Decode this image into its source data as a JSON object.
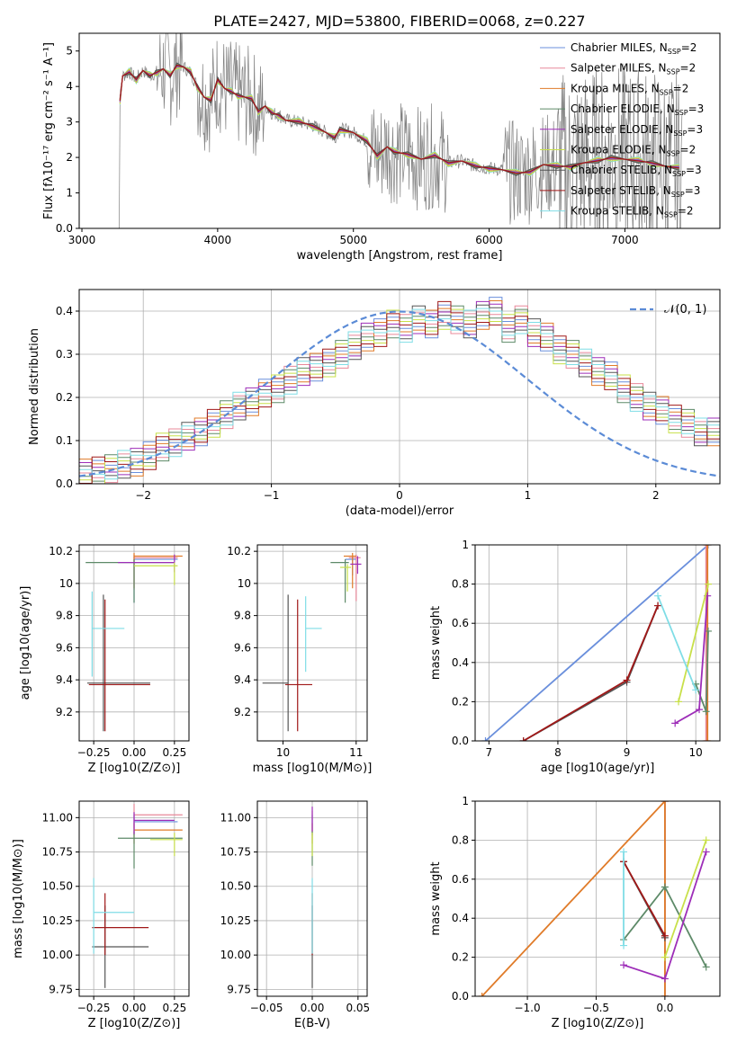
{
  "figure": {
    "title": "PLATE=2427, MJD=53800, FIBERID=0068, z=0.227"
  },
  "colors": {
    "models": [
      "#6a8fdc",
      "#e8889a",
      "#e07b29",
      "#5d8a68",
      "#9d2db8",
      "#c8e04a",
      "#555555",
      "#a01818",
      "#7fdde6"
    ],
    "data": "#808080",
    "grid": "#b0b0b0"
  },
  "chart_data": [
    {
      "id": "spectrum",
      "type": "line",
      "xlabel": "wavelength [Angstrom, rest frame]",
      "ylabel": "Flux [fλ10⁻¹⁷ erg cm⁻² s⁻¹ A⁻¹]",
      "xlim": [
        2980,
        7700
      ],
      "ylim": [
        0,
        5.5
      ],
      "xticks": [
        3000,
        4000,
        5000,
        6000,
        7000
      ],
      "yticks": [
        0,
        1,
        2,
        3,
        4,
        5
      ],
      "grid": false,
      "legend_position": "top-right",
      "legend": [
        {
          "label": "Chabrier MILES, N",
          "sub": "SSP",
          "suffix": "=2"
        },
        {
          "label": "Salpeter MILES, N",
          "sub": "SSP",
          "suffix": "=2"
        },
        {
          "label": "Kroupa MILES, N",
          "sub": "SSP",
          "suffix": "=2"
        },
        {
          "label": "Chabrier ELODIE, N",
          "sub": "SSP",
          "suffix": "=3"
        },
        {
          "label": "Salpeter ELODIE, N",
          "sub": "SSP",
          "suffix": "=3"
        },
        {
          "label": "Kroupa ELODIE, N",
          "sub": "SSP",
          "suffix": "=2"
        },
        {
          "label": "Chabrier STELIB, N",
          "sub": "SSP",
          "suffix": "=3"
        },
        {
          "label": "Salpeter STELIB, N",
          "sub": "SSP",
          "suffix": "=3"
        },
        {
          "label": "Kroupa STELIB, N",
          "sub": "SSP",
          "suffix": "=2"
        }
      ],
      "data_range": [
        3250,
        7420
      ],
      "model_wavelength": [
        3280,
        3300,
        3350,
        3400,
        3450,
        3500,
        3550,
        3600,
        3650,
        3700,
        3750,
        3800,
        3850,
        3900,
        3950,
        4000,
        4050,
        4100,
        4150,
        4200,
        4250,
        4300,
        4350,
        4400,
        4450,
        4500,
        4600,
        4700,
        4800,
        4860,
        4900,
        5000,
        5100,
        5175,
        5250,
        5300,
        5400,
        5500,
        5600,
        5700,
        5800,
        5900,
        6000,
        6100,
        6200,
        6300,
        6400,
        6500,
        6600,
        6700,
        6800,
        6900,
        7000,
        7100,
        7200,
        7300,
        7400
      ],
      "model_flux": [
        3.6,
        4.3,
        4.4,
        4.2,
        4.45,
        4.3,
        4.4,
        4.5,
        4.3,
        4.6,
        4.55,
        4.4,
        4.0,
        3.7,
        3.6,
        4.2,
        3.95,
        3.85,
        3.75,
        3.7,
        3.65,
        3.3,
        3.45,
        3.25,
        3.2,
        3.05,
        3.0,
        2.9,
        2.7,
        2.55,
        2.8,
        2.7,
        2.45,
        2.05,
        2.3,
        2.15,
        2.1,
        1.95,
        2.05,
        1.85,
        1.9,
        1.75,
        1.7,
        1.65,
        1.55,
        1.6,
        1.8,
        1.75,
        1.75,
        1.85,
        1.9,
        2.0,
        1.95,
        1.9,
        1.85,
        1.75,
        1.7
      ]
    },
    {
      "id": "residuals",
      "type": "histogram",
      "xlabel": "(data-model)/error",
      "ylabel": "Normed distribution",
      "xlim": [
        -2.5,
        2.5
      ],
      "ylim": [
        0,
        0.45
      ],
      "xticks": [
        -2,
        -1,
        0,
        1,
        2
      ],
      "yticks": [
        0.0,
        0.1,
        0.2,
        0.3,
        0.4
      ],
      "grid": true,
      "legend": [
        {
          "label": "𝒩(0, 1)",
          "style": "dashed"
        }
      ],
      "legend_position": "top-right",
      "bin_width": 0.1,
      "bin_start": -2.5,
      "base_hist": [
        0.025,
        0.03,
        0.035,
        0.045,
        0.05,
        0.065,
        0.085,
        0.095,
        0.11,
        0.12,
        0.14,
        0.16,
        0.18,
        0.19,
        0.21,
        0.22,
        0.24,
        0.26,
        0.27,
        0.28,
        0.3,
        0.32,
        0.34,
        0.35,
        0.37,
        0.36,
        0.38,
        0.37,
        0.39,
        0.38,
        0.37,
        0.39,
        0.4,
        0.36,
        0.38,
        0.35,
        0.34,
        0.31,
        0.3,
        0.28,
        0.26,
        0.25,
        0.22,
        0.2,
        0.18,
        0.17,
        0.15,
        0.14,
        0.12,
        0.12,
        0.11,
        0.1,
        0.09,
        0.085,
        0.08,
        0.07,
        0.06,
        0.055,
        0.05,
        0.045
      ]
    },
    {
      "id": "age-vs-Z",
      "type": "scatter",
      "xlabel": "Z [log10(Z/Z⊙)]",
      "ylabel": "age  [log10(age/yr)]",
      "xlim": [
        -0.34,
        0.34
      ],
      "ylim": [
        9.02,
        10.24
      ],
      "xticks": [
        -0.25,
        0.0,
        0.25
      ],
      "xticklabels": [
        "−0.25",
        "0.00",
        "0.25"
      ],
      "yticks": [
        9.2,
        9.4,
        9.6,
        9.8,
        10.0,
        10.2
      ],
      "grid": true,
      "points": [
        {
          "model": 0,
          "x": 0.0,
          "y": 10.15,
          "xerr": [
            0.0,
            0.27
          ],
          "yerr": [
            0.27,
            0.02
          ]
        },
        {
          "model": 1,
          "x": 0.0,
          "y": 10.16,
          "xerr": [
            0.0,
            0.27
          ],
          "yerr": [
            0.2,
            0.02
          ]
        },
        {
          "model": 2,
          "x": 0.0,
          "y": 10.17,
          "xerr": [
            0.0,
            0.3
          ],
          "yerr": [
            0.2,
            0.02
          ]
        },
        {
          "model": 3,
          "x": 0.0,
          "y": 10.13,
          "xerr": [
            0.3,
            0.25
          ],
          "yerr": [
            0.25,
            0.02
          ]
        },
        {
          "model": 4,
          "x": 0.25,
          "y": 10.13,
          "xerr": [
            0.35,
            0.0
          ],
          "yerr": [
            0.06,
            0.05
          ]
        },
        {
          "model": 5,
          "x": 0.25,
          "y": 10.11,
          "xerr": [
            0.25,
            0.02
          ],
          "yerr": [
            0.12,
            0.02
          ]
        },
        {
          "model": 6,
          "x": -0.19,
          "y": 9.38,
          "xerr": [
            0.1,
            0.29
          ],
          "yerr": [
            0.3,
            0.55
          ]
        },
        {
          "model": 7,
          "x": -0.18,
          "y": 9.37,
          "xerr": [
            0.1,
            0.28
          ],
          "yerr": [
            0.29,
            0.53
          ]
        },
        {
          "model": 8,
          "x": -0.26,
          "y": 9.72,
          "xerr": [
            0.0,
            0.2
          ],
          "yerr": [
            0.3,
            0.23
          ]
        }
      ]
    },
    {
      "id": "age-vs-mass",
      "type": "scatter",
      "xlabel": "mass [log10(M/M⊙)]",
      "ylabel": "",
      "xlim": [
        9.65,
        11.15
      ],
      "ylim": [
        9.02,
        10.24
      ],
      "xticks": [
        10,
        11
      ],
      "yticks": [
        9.2,
        9.4,
        9.6,
        9.8,
        10.0,
        10.2
      ],
      "grid": true,
      "points": [
        {
          "model": 0,
          "x": 10.95,
          "y": 10.15,
          "xerr": [
            0.1,
            0.05
          ],
          "yerr": [
            0.1,
            0.02
          ]
        },
        {
          "model": 1,
          "x": 11.0,
          "y": 10.16,
          "xerr": [
            0.1,
            0.06
          ],
          "yerr": [
            0.27,
            0.02
          ]
        },
        {
          "model": 2,
          "x": 10.95,
          "y": 10.17,
          "xerr": [
            0.12,
            0.05
          ],
          "yerr": [
            0.2,
            0.02
          ]
        },
        {
          "model": 3,
          "x": 10.85,
          "y": 10.13,
          "xerr": [
            0.2,
            0.05
          ],
          "yerr": [
            0.25,
            0.02
          ]
        },
        {
          "model": 4,
          "x": 11.02,
          "y": 10.12,
          "xerr": [
            0.1,
            0.05
          ],
          "yerr": [
            0.06,
            0.05
          ]
        },
        {
          "model": 5,
          "x": 10.88,
          "y": 10.1,
          "xerr": [
            0.1,
            0.05
          ],
          "yerr": [
            0.15,
            0.02
          ]
        },
        {
          "model": 6,
          "x": 10.07,
          "y": 9.38,
          "xerr": [
            0.35,
            0.0
          ],
          "yerr": [
            0.3,
            0.55
          ]
        },
        {
          "model": 7,
          "x": 10.2,
          "y": 9.37,
          "xerr": [
            0.17,
            0.2
          ],
          "yerr": [
            0.29,
            0.53
          ]
        },
        {
          "model": 8,
          "x": 10.31,
          "y": 9.72,
          "xerr": [
            0.0,
            0.22
          ],
          "yerr": [
            0.27,
            0.2
          ]
        }
      ]
    },
    {
      "id": "weight-vs-age",
      "type": "line",
      "xlabel": "age  [log10(age/yr)]",
      "ylabel": "mass weight",
      "xlim": [
        6.8,
        10.35
      ],
      "ylim": [
        0,
        1.0
      ],
      "xticks": [
        7,
        8,
        9,
        10
      ],
      "yticks": [
        0.0,
        0.2,
        0.4,
        0.6,
        0.8,
        1.0
      ],
      "grid": true,
      "series": [
        {
          "model": 0,
          "x": [
            6.95,
            10.18
          ],
          "y": [
            0.0,
            1.0
          ]
        },
        {
          "model": 1,
          "x": [
            10.15,
            10.15
          ],
          "y": [
            0.0,
            1.0
          ]
        },
        {
          "model": 2,
          "x": [
            10.17,
            10.17
          ],
          "y": [
            0.0,
            1.0
          ]
        },
        {
          "model": 3,
          "x": [
            10.0,
            10.15,
            10.18
          ],
          "y": [
            0.29,
            0.15,
            0.56
          ]
        },
        {
          "model": 4,
          "x": [
            9.7,
            10.05,
            10.17
          ],
          "y": [
            0.09,
            0.16,
            0.74
          ]
        },
        {
          "model": 5,
          "x": [
            9.75,
            10.18
          ],
          "y": [
            0.2,
            0.8
          ]
        },
        {
          "model": 6,
          "x": [
            7.5,
            9.0,
            9.45
          ],
          "y": [
            0.0,
            0.3,
            0.69
          ]
        },
        {
          "model": 7,
          "x": [
            7.5,
            9.0,
            9.45
          ],
          "y": [
            0.0,
            0.31,
            0.69
          ]
        },
        {
          "model": 8,
          "x": [
            9.45,
            10.0
          ],
          "y": [
            0.74,
            0.26
          ]
        }
      ]
    },
    {
      "id": "mass-vs-Z",
      "type": "scatter",
      "xlabel": "Z [log10(Z/Z⊙)]",
      "ylabel": "mass [log10(M/M⊙)]",
      "xlim": [
        -0.34,
        0.34
      ],
      "ylim": [
        9.7,
        11.12
      ],
      "xticks": [
        -0.25,
        0.0,
        0.25
      ],
      "xticklabels": [
        "−0.25",
        "0.00",
        "0.25"
      ],
      "yticks": [
        9.75,
        10.0,
        10.25,
        10.5,
        10.75,
        11.0
      ],
      "yticklabels": [
        "9.75",
        "10.00",
        "10.25",
        "10.50",
        "10.75",
        "11.00"
      ],
      "grid": true,
      "points": [
        {
          "model": 0,
          "x": 0.0,
          "y": 10.97,
          "xerr": [
            0.0,
            0.27
          ],
          "yerr": [
            0.1,
            0.05
          ]
        },
        {
          "model": 1,
          "x": 0.0,
          "y": 11.02,
          "xerr": [
            0.0,
            0.3
          ],
          "yerr": [
            0.1,
            0.08
          ]
        },
        {
          "model": 2,
          "x": 0.0,
          "y": 10.91,
          "xerr": [
            0.0,
            0.3
          ],
          "yerr": [
            0.1,
            0.05
          ]
        },
        {
          "model": 3,
          "x": 0.0,
          "y": 10.85,
          "xerr": [
            0.1,
            0.3
          ],
          "yerr": [
            0.22,
            0.05
          ]
        },
        {
          "model": 4,
          "x": 0.0,
          "y": 10.98,
          "xerr": [
            0.0,
            0.25
          ],
          "yerr": [
            0.1,
            0.06
          ]
        },
        {
          "model": 5,
          "x": 0.25,
          "y": 10.84,
          "xerr": [
            0.15,
            0.05
          ],
          "yerr": [
            0.12,
            0.05
          ]
        },
        {
          "model": 6,
          "x": -0.18,
          "y": 10.06,
          "xerr": [
            0.08,
            0.27
          ],
          "yerr": [
            0.3,
            0.3
          ]
        },
        {
          "model": 7,
          "x": -0.18,
          "y": 10.2,
          "xerr": [
            0.08,
            0.27
          ],
          "yerr": [
            0.2,
            0.25
          ]
        },
        {
          "model": 8,
          "x": -0.25,
          "y": 10.31,
          "xerr": [
            0.0,
            0.25
          ],
          "yerr": [
            0.3,
            0.25
          ]
        }
      ]
    },
    {
      "id": "mass-vs-EBV",
      "type": "scatter",
      "xlabel": "E(B-V)",
      "ylabel": "",
      "xlim": [
        -0.06,
        0.06
      ],
      "ylim": [
        9.7,
        11.12
      ],
      "xticks": [
        -0.05,
        0.0,
        0.05
      ],
      "xticklabels": [
        "−0.05",
        "0.00",
        "0.05"
      ],
      "yticks": [
        9.75,
        10.0,
        10.25,
        10.5,
        10.75,
        11.0
      ],
      "yticklabels": [
        "9.75",
        "10.00",
        "10.25",
        "10.50",
        "10.75",
        "11.00"
      ],
      "grid": true,
      "points": [
        {
          "model": 0,
          "x": 0.0,
          "y": 10.97,
          "xerr": [
            0,
            0
          ],
          "yerr": [
            0.1,
            0.05
          ]
        },
        {
          "model": 1,
          "x": 0.0,
          "y": 11.0,
          "xerr": [
            0,
            0
          ],
          "yerr": [
            0.1,
            0.05
          ]
        },
        {
          "model": 2,
          "x": 0.0,
          "y": 10.91,
          "xerr": [
            0,
            0
          ],
          "yerr": [
            0.1,
            0.05
          ]
        },
        {
          "model": 3,
          "x": 0.0,
          "y": 10.85,
          "xerr": [
            0,
            0
          ],
          "yerr": [
            0.2,
            0.05
          ]
        },
        {
          "model": 4,
          "x": 0.0,
          "y": 11.0,
          "xerr": [
            0,
            0
          ],
          "yerr": [
            0.1,
            0.08
          ]
        },
        {
          "model": 5,
          "x": 0.0,
          "y": 10.84,
          "xerr": [
            0,
            0
          ],
          "yerr": [
            0.12,
            0.05
          ]
        },
        {
          "model": 6,
          "x": 0.0,
          "y": 10.06,
          "xerr": [
            0,
            0
          ],
          "yerr": [
            0.3,
            0.3
          ]
        },
        {
          "model": 7,
          "x": 0.0,
          "y": 10.2,
          "xerr": [
            0,
            0
          ],
          "yerr": [
            0.2,
            0.25
          ]
        },
        {
          "model": 8,
          "x": 0.0,
          "y": 10.31,
          "xerr": [
            0,
            0
          ],
          "yerr": [
            0.3,
            0.25
          ]
        }
      ]
    },
    {
      "id": "weight-vs-Z",
      "type": "line",
      "xlabel": "Z [log10(Z/Z⊙)]",
      "ylabel": "mass weight",
      "xlim": [
        -1.38,
        0.4
      ],
      "ylim": [
        0,
        1.0
      ],
      "xticks": [
        -1.0,
        -0.5,
        0.0
      ],
      "xticklabels": [
        "−1.0",
        "−0.5",
        "0.0"
      ],
      "yticks": [
        0.0,
        0.2,
        0.4,
        0.6,
        0.8,
        1.0
      ],
      "grid": true,
      "series": [
        {
          "model": 0,
          "x": [
            0.0,
            0.0
          ],
          "y": [
            0.0,
            1.0
          ]
        },
        {
          "model": 1,
          "x": [
            0.0,
            0.0
          ],
          "y": [
            0.0,
            1.0
          ]
        },
        {
          "model": 2,
          "x": [
            -1.33,
            0.0,
            0.0
          ],
          "y": [
            0.0,
            1.0,
            0.0
          ]
        },
        {
          "model": 3,
          "x": [
            -0.3,
            0.0,
            0.3
          ],
          "y": [
            0.29,
            0.56,
            0.15
          ]
        },
        {
          "model": 4,
          "x": [
            -0.3,
            0.0,
            0.3
          ],
          "y": [
            0.16,
            0.09,
            0.74
          ]
        },
        {
          "model": 5,
          "x": [
            0.0,
            0.3
          ],
          "y": [
            0.2,
            0.8
          ]
        },
        {
          "model": 6,
          "x": [
            -0.3,
            0.0
          ],
          "y": [
            0.69,
            0.3
          ]
        },
        {
          "model": 7,
          "x": [
            -0.3,
            0.0
          ],
          "y": [
            0.69,
            0.31
          ]
        },
        {
          "model": 8,
          "x": [
            -0.3,
            -0.3
          ],
          "y": [
            0.74,
            0.26
          ]
        }
      ]
    }
  ]
}
